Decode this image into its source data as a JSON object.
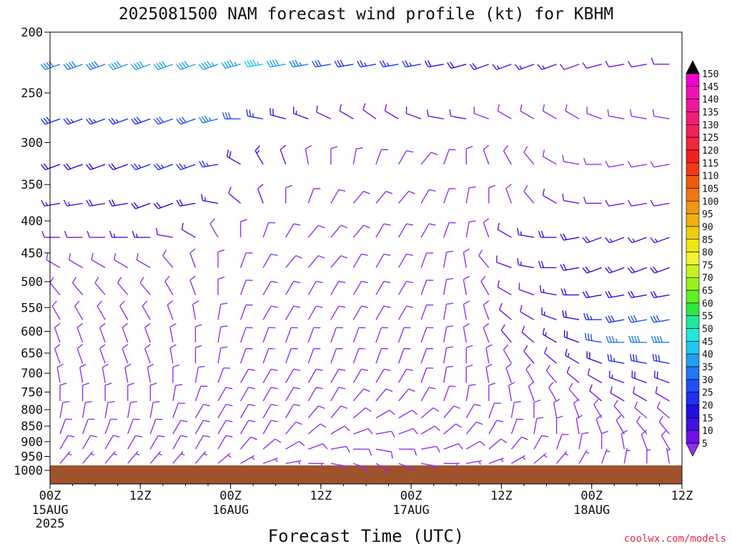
{
  "chart_data": {
    "type": "wind_barb_profile",
    "title": "2025081500 NAM forecast wind profile (kt) for KBHM",
    "xlabel": "Forecast Time (UTC)",
    "ylabel": "",
    "credit": "coolwx.com/models",
    "units": "kt",
    "y_scale": "log",
    "ylim": [
      1000,
      200
    ],
    "xlim_hours": [
      0,
      84
    ],
    "grid": false,
    "legend": "colorbar-right",
    "y_ticks": [
      200,
      250,
      300,
      350,
      400,
      450,
      500,
      550,
      600,
      650,
      700,
      750,
      800,
      850,
      900,
      950,
      1000
    ],
    "x_ticks": [
      {
        "hour": 0,
        "label": "00Z",
        "date": "15AUG",
        "year": "2025"
      },
      {
        "hour": 12,
        "label": "12Z",
        "date": "",
        "year": ""
      },
      {
        "hour": 24,
        "label": "00Z",
        "date": "16AUG",
        "year": ""
      },
      {
        "hour": 36,
        "label": "12Z",
        "date": "",
        "year": ""
      },
      {
        "hour": 48,
        "label": "00Z",
        "date": "17AUG",
        "year": ""
      },
      {
        "hour": 60,
        "label": "12Z",
        "date": "",
        "year": ""
      },
      {
        "hour": 72,
        "label": "00Z",
        "date": "18AUG",
        "year": ""
      },
      {
        "hour": 84,
        "label": "12Z",
        "date": "",
        "year": ""
      }
    ],
    "colorbar": {
      "labels": [
        150,
        145,
        140,
        135,
        130,
        125,
        120,
        115,
        110,
        105,
        100,
        95,
        90,
        85,
        80,
        75,
        70,
        65,
        60,
        55,
        50,
        45,
        40,
        35,
        30,
        25,
        20,
        15,
        10,
        5
      ],
      "colors": [
        "#f000d0",
        "#f010b8",
        "#f0189a",
        "#f01e78",
        "#f0205a",
        "#f0283c",
        "#f02020",
        "#f03a18",
        "#f05a10",
        "#f07810",
        "#f09610",
        "#f0b010",
        "#f0cc10",
        "#f0e810",
        "#f4f430",
        "#c8f020",
        "#98f020",
        "#60f020",
        "#30e840",
        "#20e8a0",
        "#20e8d8",
        "#20c8f0",
        "#20a0f0",
        "#2078f0",
        "#2050f0",
        "#2030f0",
        "#2010e0",
        "#4010e0",
        "#7010e8",
        "#9030f0"
      ]
    },
    "terrain_color": "#a0522d",
    "surface_pressure_hpa": 982,
    "levels_hpa": [
      225,
      275,
      325,
      375,
      425,
      475,
      525,
      575,
      625,
      675,
      725,
      775,
      825,
      875,
      925,
      975
    ],
    "series_description": "wind barbs at each forecast hour (every 3h) and pressure level; speed in kt, direction in degrees from",
    "speed_anchors_kt": [
      [
        38,
        38,
        38,
        40,
        40,
        42,
        42,
        43,
        44,
        45,
        40,
        35,
        30,
        28,
        25,
        25,
        25,
        22,
        20,
        18,
        15,
        15,
        15,
        12,
        10,
        10,
        10,
        10,
        8
      ],
      [
        28,
        26,
        25,
        25,
        28,
        30,
        32,
        35,
        30,
        25,
        18,
        15,
        12,
        12,
        12,
        12,
        12,
        10,
        10,
        8,
        8,
        8,
        8,
        8,
        8,
        8,
        8,
        8,
        8
      ],
      [
        22,
        22,
        22,
        22,
        25,
        25,
        25,
        25,
        20,
        15,
        10,
        8,
        8,
        8,
        8,
        8,
        8,
        8,
        8,
        8,
        8,
        8,
        8,
        8,
        8,
        8,
        8,
        8,
        8
      ],
      [
        15,
        15,
        18,
        20,
        20,
        20,
        20,
        15,
        12,
        10,
        8,
        8,
        8,
        8,
        8,
        8,
        8,
        8,
        8,
        8,
        8,
        8,
        10,
        10,
        10,
        10,
        10,
        10,
        10
      ],
      [
        10,
        10,
        12,
        15,
        15,
        12,
        10,
        8,
        8,
        8,
        8,
        8,
        8,
        8,
        8,
        8,
        8,
        8,
        8,
        8,
        12,
        15,
        18,
        20,
        18,
        15,
        15,
        15,
        15
      ],
      [
        8,
        8,
        8,
        8,
        8,
        8,
        8,
        8,
        8,
        8,
        8,
        8,
        8,
        8,
        8,
        8,
        8,
        8,
        8,
        8,
        10,
        15,
        18,
        20,
        20,
        18,
        18,
        18,
        15
      ],
      [
        8,
        8,
        8,
        8,
        8,
        8,
        8,
        8,
        8,
        8,
        8,
        8,
        8,
        8,
        8,
        8,
        8,
        8,
        8,
        8,
        10,
        12,
        15,
        20,
        22,
        22,
        20,
        20,
        20
      ],
      [
        8,
        8,
        8,
        8,
        8,
        8,
        8,
        8,
        8,
        8,
        8,
        8,
        8,
        8,
        8,
        8,
        8,
        8,
        8,
        8,
        10,
        12,
        15,
        20,
        25,
        28,
        30,
        30,
        30
      ],
      [
        8,
        8,
        8,
        8,
        8,
        8,
        8,
        8,
        8,
        8,
        8,
        8,
        8,
        8,
        8,
        8,
        8,
        8,
        8,
        8,
        10,
        12,
        15,
        20,
        30,
        35,
        38,
        38,
        40
      ],
      [
        8,
        8,
        8,
        8,
        8,
        8,
        8,
        8,
        8,
        8,
        8,
        8,
        8,
        8,
        8,
        8,
        8,
        8,
        8,
        8,
        8,
        10,
        12,
        15,
        20,
        25,
        28,
        28,
        30
      ],
      [
        8,
        8,
        8,
        8,
        8,
        8,
        8,
        8,
        8,
        8,
        8,
        8,
        8,
        8,
        8,
        8,
        8,
        8,
        8,
        8,
        8,
        8,
        8,
        10,
        12,
        15,
        18,
        18,
        18
      ],
      [
        8,
        8,
        8,
        8,
        8,
        8,
        8,
        8,
        8,
        8,
        8,
        8,
        8,
        8,
        8,
        8,
        8,
        8,
        8,
        8,
        8,
        8,
        8,
        8,
        10,
        10,
        10,
        10,
        10
      ],
      [
        8,
        8,
        8,
        8,
        8,
        8,
        8,
        8,
        8,
        8,
        8,
        8,
        8,
        8,
        8,
        8,
        8,
        8,
        8,
        8,
        8,
        8,
        8,
        8,
        8,
        8,
        8,
        8,
        8
      ],
      [
        8,
        8,
        8,
        8,
        8,
        8,
        8,
        8,
        8,
        8,
        8,
        8,
        8,
        8,
        8,
        8,
        8,
        8,
        8,
        8,
        8,
        8,
        8,
        8,
        8,
        8,
        8,
        8,
        8
      ],
      [
        8,
        8,
        8,
        8,
        8,
        8,
        8,
        8,
        8,
        8,
        8,
        8,
        8,
        8,
        8,
        8,
        8,
        8,
        8,
        8,
        8,
        8,
        8,
        8,
        8,
        8,
        8,
        8,
        8
      ],
      [
        6,
        6,
        6,
        6,
        6,
        6,
        6,
        6,
        6,
        6,
        6,
        6,
        6,
        6,
        6,
        6,
        6,
        6,
        6,
        6,
        6,
        6,
        6,
        6,
        6,
        6,
        6,
        6,
        6
      ]
    ],
    "direction_anchors_deg": [
      [
        250,
        250,
        250,
        250,
        250,
        250,
        250,
        250,
        255,
        260,
        260,
        260,
        260,
        260,
        260,
        260,
        260,
        260,
        255,
        250,
        250,
        250,
        250,
        250,
        255,
        260,
        260,
        270,
        290
      ],
      [
        250,
        250,
        250,
        250,
        250,
        250,
        250,
        255,
        270,
        280,
        285,
        290,
        295,
        300,
        305,
        300,
        290,
        280,
        280,
        290,
        300,
        300,
        300,
        300,
        290,
        280,
        280,
        280,
        290
      ],
      [
        250,
        250,
        250,
        250,
        250,
        250,
        250,
        260,
        300,
        330,
        340,
        350,
        0,
        10,
        20,
        30,
        40,
        20,
        0,
        340,
        330,
        320,
        300,
        280,
        270,
        260,
        260,
        260,
        260
      ],
      [
        260,
        260,
        260,
        260,
        250,
        250,
        260,
        280,
        310,
        340,
        0,
        20,
        30,
        40,
        40,
        40,
        30,
        20,
        10,
        0,
        340,
        320,
        300,
        280,
        270,
        260,
        260,
        260,
        260
      ],
      [
        270,
        270,
        270,
        270,
        270,
        280,
        300,
        330,
        0,
        20,
        30,
        40,
        40,
        40,
        30,
        30,
        30,
        20,
        10,
        340,
        300,
        280,
        270,
        260,
        250,
        250,
        250,
        250,
        250
      ],
      [
        300,
        300,
        300,
        300,
        300,
        320,
        340,
        0,
        20,
        30,
        40,
        40,
        40,
        30,
        30,
        30,
        20,
        10,
        350,
        320,
        290,
        280,
        270,
        260,
        250,
        250,
        250,
        250,
        250
      ],
      [
        320,
        320,
        320,
        320,
        320,
        330,
        340,
        0,
        20,
        30,
        30,
        30,
        30,
        30,
        30,
        30,
        20,
        10,
        350,
        330,
        300,
        290,
        280,
        270,
        260,
        260,
        260,
        260,
        260
      ],
      [
        330,
        330,
        330,
        330,
        330,
        340,
        350,
        10,
        20,
        30,
        30,
        30,
        30,
        30,
        30,
        30,
        20,
        10,
        350,
        340,
        310,
        300,
        290,
        280,
        270,
        260,
        260,
        260,
        260
      ],
      [
        340,
        340,
        340,
        340,
        340,
        350,
        0,
        10,
        20,
        20,
        20,
        20,
        20,
        20,
        20,
        20,
        20,
        10,
        350,
        340,
        320,
        310,
        300,
        290,
        280,
        270,
        270,
        270,
        270
      ],
      [
        340,
        340,
        340,
        340,
        340,
        350,
        0,
        10,
        20,
        20,
        20,
        20,
        20,
        20,
        20,
        20,
        20,
        10,
        0,
        350,
        330,
        320,
        310,
        300,
        290,
        280,
        280,
        280,
        280
      ],
      [
        350,
        350,
        350,
        350,
        350,
        0,
        10,
        20,
        30,
        30,
        30,
        30,
        30,
        30,
        30,
        30,
        20,
        10,
        0,
        350,
        340,
        330,
        320,
        310,
        300,
        290,
        290,
        290,
        290
      ],
      [
        0,
        0,
        0,
        0,
        0,
        10,
        20,
        30,
        30,
        30,
        30,
        30,
        30,
        40,
        40,
        40,
        30,
        20,
        10,
        0,
        350,
        340,
        330,
        320,
        310,
        300,
        300,
        300,
        300
      ],
      [
        10,
        10,
        10,
        10,
        10,
        20,
        30,
        30,
        30,
        30,
        30,
        40,
        40,
        50,
        60,
        60,
        50,
        40,
        30,
        20,
        10,
        0,
        350,
        340,
        330,
        320,
        310,
        310,
        310
      ],
      [
        20,
        20,
        20,
        20,
        20,
        30,
        30,
        30,
        30,
        30,
        40,
        50,
        60,
        70,
        80,
        70,
        60,
        50,
        40,
        30,
        20,
        10,
        0,
        350,
        340,
        330,
        320,
        320,
        320
      ],
      [
        30,
        30,
        30,
        30,
        30,
        30,
        30,
        30,
        40,
        50,
        60,
        70,
        80,
        90,
        100,
        90,
        80,
        70,
        60,
        50,
        40,
        30,
        20,
        10,
        0,
        350,
        340,
        330,
        330
      ],
      [
        40,
        40,
        40,
        40,
        40,
        40,
        40,
        50,
        60,
        70,
        80,
        90,
        100,
        110,
        120,
        110,
        100,
        90,
        80,
        70,
        60,
        50,
        40,
        30,
        20,
        10,
        0,
        350,
        350
      ]
    ]
  }
}
